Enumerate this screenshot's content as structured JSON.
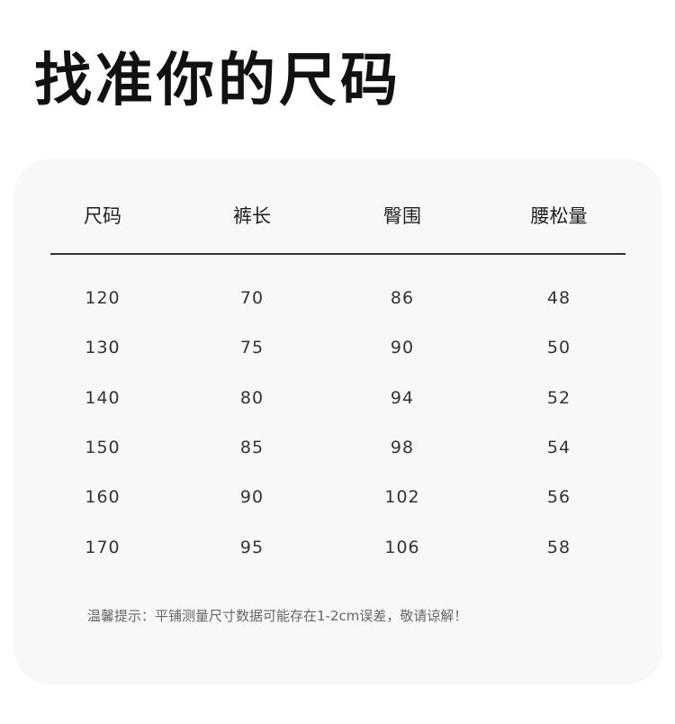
{
  "title": "找准你的尺码",
  "table": {
    "headers": [
      "尺码",
      "裤长",
      "臀围",
      "腰松量"
    ],
    "rows": [
      [
        "120",
        "70",
        "86",
        "48"
      ],
      [
        "130",
        "75",
        "90",
        "50"
      ],
      [
        "140",
        "80",
        "94",
        "52"
      ],
      [
        "150",
        "85",
        "98",
        "54"
      ],
      [
        "160",
        "90",
        "102",
        "56"
      ],
      [
        "170",
        "95",
        "106",
        "58"
      ]
    ]
  },
  "note": "温馨提示：平铺测量尺寸数据可能存在1-2cm误差，敬请谅解！",
  "colors": {
    "card_background": "#f8f8f6",
    "text": "#222222"
  }
}
